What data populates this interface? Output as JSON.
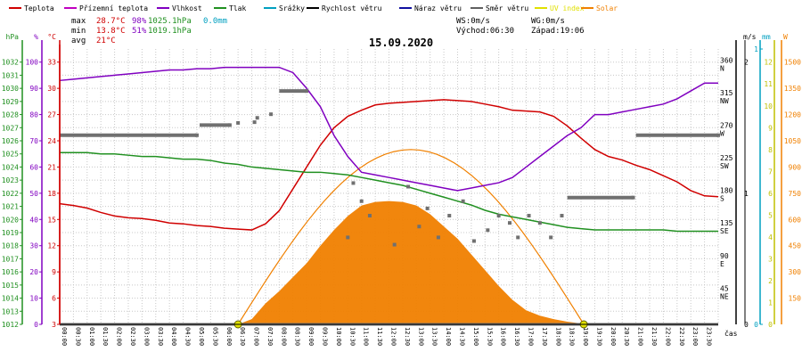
{
  "legend": [
    {
      "label": "Teplota",
      "color": "#d00000"
    },
    {
      "label": "Přízemní teplota",
      "color": "#c000c0"
    },
    {
      "label": "Vlhkost",
      "color": "#8000c0"
    },
    {
      "label": "Tlak",
      "color": "#209020"
    },
    {
      "label": "Srážky",
      "color": "#00a0c0"
    },
    {
      "label": "Rychlost větru",
      "color": "#000000"
    },
    {
      "label": "Náraz větru",
      "color": "#1010a0"
    },
    {
      "label": "Směr větru",
      "color": "#606060"
    },
    {
      "label": "UV index",
      "color": "#e0e000"
    },
    {
      "label": "Solar",
      "color": "#f08000"
    }
  ],
  "stats": {
    "max_label": "max",
    "max_temp": "28.7°C",
    "max_hum": "98%",
    "max_press": "1025.1hPa",
    "max_rain": "0.0mm",
    "min_label": "min",
    "min_temp": "13.8°C",
    "min_hum": "51%",
    "min_press": "1019.1hPa",
    "avg_label": "avg",
    "avg_temp": "21°C"
  },
  "wind": {
    "ws": "WS:0m/s",
    "wg": "WG:0m/s"
  },
  "sun": {
    "sunrise": "Východ:06:30",
    "sunset": "Západ:19:06"
  },
  "date": "15.09.2020",
  "axis_units": {
    "press": "hPa",
    "hum": "%",
    "temp": "°C",
    "windspeed": "m/s",
    "rain": "mm",
    "solar": "W",
    "time": "čas"
  },
  "colors": {
    "temp": "#d00000",
    "hum": "#8000c0",
    "press": "#209020",
    "wind": "#707070",
    "dir": "#707070",
    "solar": "#f08000",
    "uv": "#e0e000",
    "rain": "#00a0c0",
    "grid": "#c8c8c8"
  },
  "chart_data": {
    "type": "line",
    "x_unit": "time of day (hours)",
    "xlim": [
      0,
      24
    ],
    "x_ticks": [
      "00:00",
      "00:30",
      "01:00",
      "01:30",
      "02:00",
      "02:30",
      "03:00",
      "03:30",
      "04:00",
      "04:30",
      "05:00",
      "05:30",
      "06:00",
      "06:30",
      "07:00",
      "07:30",
      "08:00",
      "08:30",
      "09:00",
      "09:30",
      "10:00",
      "10:30",
      "11:00",
      "11:30",
      "12:00",
      "12:30",
      "13:00",
      "13:30",
      "14:00",
      "14:30",
      "15:00",
      "15:30",
      "16:00",
      "16:30",
      "17:00",
      "17:30",
      "18:00",
      "18:30",
      "19:00",
      "19:30",
      "20:00",
      "20:30",
      "21:00",
      "21:30",
      "22:00",
      "22:30",
      "23:00",
      "23:30"
    ],
    "axes": {
      "pressure_hpa": {
        "ticks": [
          "1012",
          "1013",
          "1014",
          "1015",
          "1016",
          "1017",
          "1018",
          "1019",
          "1020",
          "1021",
          "1022",
          "1023",
          "1024",
          "1025",
          "1026",
          "1027",
          "1028",
          "1029",
          "1030",
          "1031",
          "1032"
        ],
        "ylim": [
          1012,
          1033
        ]
      },
      "humidity_pct": {
        "ticks": [
          "0",
          "10",
          "20",
          "30",
          "40",
          "50",
          "60",
          "70",
          "80",
          "90",
          "100"
        ],
        "ylim": [
          0,
          105
        ]
      },
      "temperature_c": {
        "ticks": [
          "3",
          "6",
          "9",
          "12",
          "15",
          "18",
          "21",
          "24",
          "27",
          "30",
          "33"
        ],
        "ylim": [
          3,
          34.5
        ]
      },
      "wind_direction_deg": {
        "ticks": [
          "45",
          "90",
          "135",
          "180",
          "225",
          "270",
          "315",
          "360"
        ],
        "dir_labels": [
          "NE",
          "E",
          "SE",
          "S",
          "SW",
          "W",
          "NW",
          "N"
        ],
        "ylim": [
          0,
          380
        ]
      },
      "wind_speed_ms": {
        "ticks": [
          "0",
          "1",
          "2"
        ],
        "ylim": [
          0,
          2.1
        ]
      },
      "rain_mm": {
        "ticks": [
          "0",
          "1"
        ],
        "ylim": [
          0,
          1
        ]
      },
      "uv_index": {
        "ticks": [
          "0",
          "1",
          "2",
          "3",
          "4",
          "5",
          "6",
          "7",
          "8",
          "9",
          "10",
          "11",
          "12"
        ],
        "ylim": [
          0,
          12.6
        ]
      },
      "solar_w": {
        "ticks": [
          "0",
          "150",
          "300",
          "450",
          "600",
          "750",
          "900",
          "1050",
          "1200",
          "1350",
          "1500"
        ],
        "ylim": [
          0,
          1575
        ]
      }
    },
    "series": [
      {
        "name": "Teplota",
        "axis": "temperature_c",
        "color": "#d00000",
        "x": [
          0,
          0.5,
          1,
          1.5,
          2,
          2.5,
          3,
          3.5,
          4,
          4.5,
          5,
          5.5,
          6,
          6.5,
          7,
          7.5,
          8,
          8.5,
          9,
          9.5,
          10,
          10.5,
          11,
          11.5,
          12,
          12.5,
          13,
          13.5,
          14,
          14.5,
          15,
          15.5,
          16,
          16.5,
          17,
          17.5,
          18,
          18.5,
          19,
          19.5,
          20,
          20.5,
          21,
          21.5,
          22,
          22.5,
          23,
          23.5,
          24
        ],
        "y": [
          16.8,
          16.6,
          16.3,
          15.8,
          15.4,
          15.2,
          15.1,
          14.9,
          14.6,
          14.5,
          14.3,
          14.2,
          14.0,
          13.9,
          13.8,
          14.5,
          16,
          18.5,
          21,
          23.5,
          25.5,
          26.8,
          27.5,
          28.1,
          28.3,
          28.4,
          28.5,
          28.6,
          28.7,
          28.6,
          28.5,
          28.2,
          27.9,
          27.5,
          27.4,
          27.3,
          26.8,
          25.7,
          24.3,
          23.0,
          22.2,
          21.8,
          21.2,
          20.7,
          20.0,
          19.3,
          18.3,
          17.7,
          17.6
        ]
      },
      {
        "name": "Vlhkost",
        "axis": "humidity_pct",
        "color": "#8000c0",
        "x": [
          0,
          0.5,
          1,
          1.5,
          2,
          2.5,
          3,
          3.5,
          4,
          4.5,
          5,
          5.5,
          6,
          6.5,
          7,
          7.5,
          8,
          8.5,
          9,
          9.5,
          10,
          10.5,
          11,
          11.5,
          12,
          12.5,
          13,
          13.5,
          14,
          14.5,
          15,
          15.5,
          16,
          16.5,
          17,
          17.5,
          18,
          18.5,
          19,
          19.5,
          20,
          20.5,
          21,
          21.5,
          22,
          22.5,
          23,
          23.5,
          24
        ],
        "y": [
          93,
          93.5,
          94,
          94.5,
          95,
          95.5,
          96,
          96.5,
          97,
          97,
          97.5,
          97.5,
          98,
          98,
          98,
          98,
          98,
          96,
          90,
          83,
          72,
          64,
          58,
          57,
          56,
          55,
          54,
          53,
          52,
          51,
          52,
          53,
          54,
          56,
          60,
          64,
          68,
          72,
          75,
          80,
          80,
          81,
          82,
          83,
          84,
          86,
          89,
          92,
          92
        ]
      },
      {
        "name": "Tlak",
        "axis": "pressure_hpa",
        "color": "#209020",
        "x": [
          0,
          0.5,
          1,
          1.5,
          2,
          2.5,
          3,
          3.5,
          4,
          4.5,
          5,
          5.5,
          6,
          6.5,
          7,
          7.5,
          8,
          8.5,
          9,
          9.5,
          10,
          10.5,
          11,
          11.5,
          12,
          12.5,
          13,
          13.5,
          14,
          14.5,
          15,
          15.5,
          16,
          16.5,
          17,
          17.5,
          18,
          18.5,
          19,
          19.5,
          20,
          20.5,
          21,
          21.5,
          22,
          22.5,
          23,
          23.5,
          24
        ],
        "y": [
          1025.1,
          1025.1,
          1025.1,
          1025.0,
          1025.0,
          1024.9,
          1024.8,
          1024.8,
          1024.7,
          1024.6,
          1024.6,
          1024.5,
          1024.3,
          1024.2,
          1024.0,
          1023.9,
          1023.8,
          1023.7,
          1023.6,
          1023.6,
          1023.5,
          1023.4,
          1023.2,
          1023.0,
          1022.8,
          1022.6,
          1022.3,
          1022.0,
          1021.7,
          1021.4,
          1021.1,
          1020.7,
          1020.4,
          1020.2,
          1020.0,
          1019.8,
          1019.6,
          1019.4,
          1019.3,
          1019.2,
          1019.2,
          1019.2,
          1019.2,
          1019.2,
          1019.2,
          1019.1,
          1019.1,
          1019.1,
          1019.1
        ]
      },
      {
        "name": "Rychlost větru",
        "axis": "wind_speed_ms",
        "color": "#707070",
        "x": [
          0,
          0,
          7.5,
          7.5,
          8.0,
          8.0,
          9.0,
          9.0,
          10.5,
          10.5,
          18.5,
          18.5,
          19.5,
          19.5,
          21.0,
          21.0,
          24
        ],
        "y": [
          0,
          0,
          0,
          0,
          0,
          0,
          0,
          0,
          0,
          0,
          0,
          0,
          0,
          0,
          0,
          0,
          0
        ]
      },
      {
        "name": "Solar",
        "axis": "solar_w",
        "color": "#f08000",
        "x": [
          6.5,
          7,
          7.5,
          8,
          8.5,
          9,
          9.5,
          10,
          10.5,
          11,
          11.5,
          12,
          12.5,
          13,
          13.5,
          14,
          14.5,
          15,
          15.5,
          16,
          16.5,
          17,
          17.5,
          18,
          18.5,
          19,
          19.1
        ],
        "y": [
          0,
          30,
          120,
          190,
          270,
          350,
          450,
          540,
          620,
          680,
          700,
          705,
          700,
          680,
          630,
          560,
          490,
          400,
          310,
          220,
          140,
          80,
          50,
          30,
          15,
          5,
          0
        ]
      }
    ],
    "wind_direction_deg": {
      "x": [
        0.0,
        5.0,
        5.1,
        6.2,
        6.5,
        7.1,
        7.2,
        7.7,
        8.0,
        9.0,
        10.5,
        10.7,
        11.0,
        11.3,
        12.2,
        12.7,
        13.1,
        13.4,
        13.8,
        14.2,
        14.7,
        15.1,
        15.6,
        16.0,
        16.4,
        16.7,
        17.1,
        17.5,
        17.9,
        18.3,
        18.5,
        20.9,
        21.0,
        24.0
      ],
      "y": [
        261,
        261,
        275,
        275,
        278,
        279,
        285,
        290,
        322,
        322,
        120,
        195,
        170,
        150,
        110,
        190,
        135,
        160,
        120,
        150,
        170,
        115,
        130,
        150,
        140,
        120,
        150,
        140,
        120,
        150,
        175,
        175,
        261,
        261
      ]
    },
    "uv_index_markers": {
      "x": [
        6.5,
        19.1
      ],
      "y": [
        0,
        0
      ]
    }
  }
}
